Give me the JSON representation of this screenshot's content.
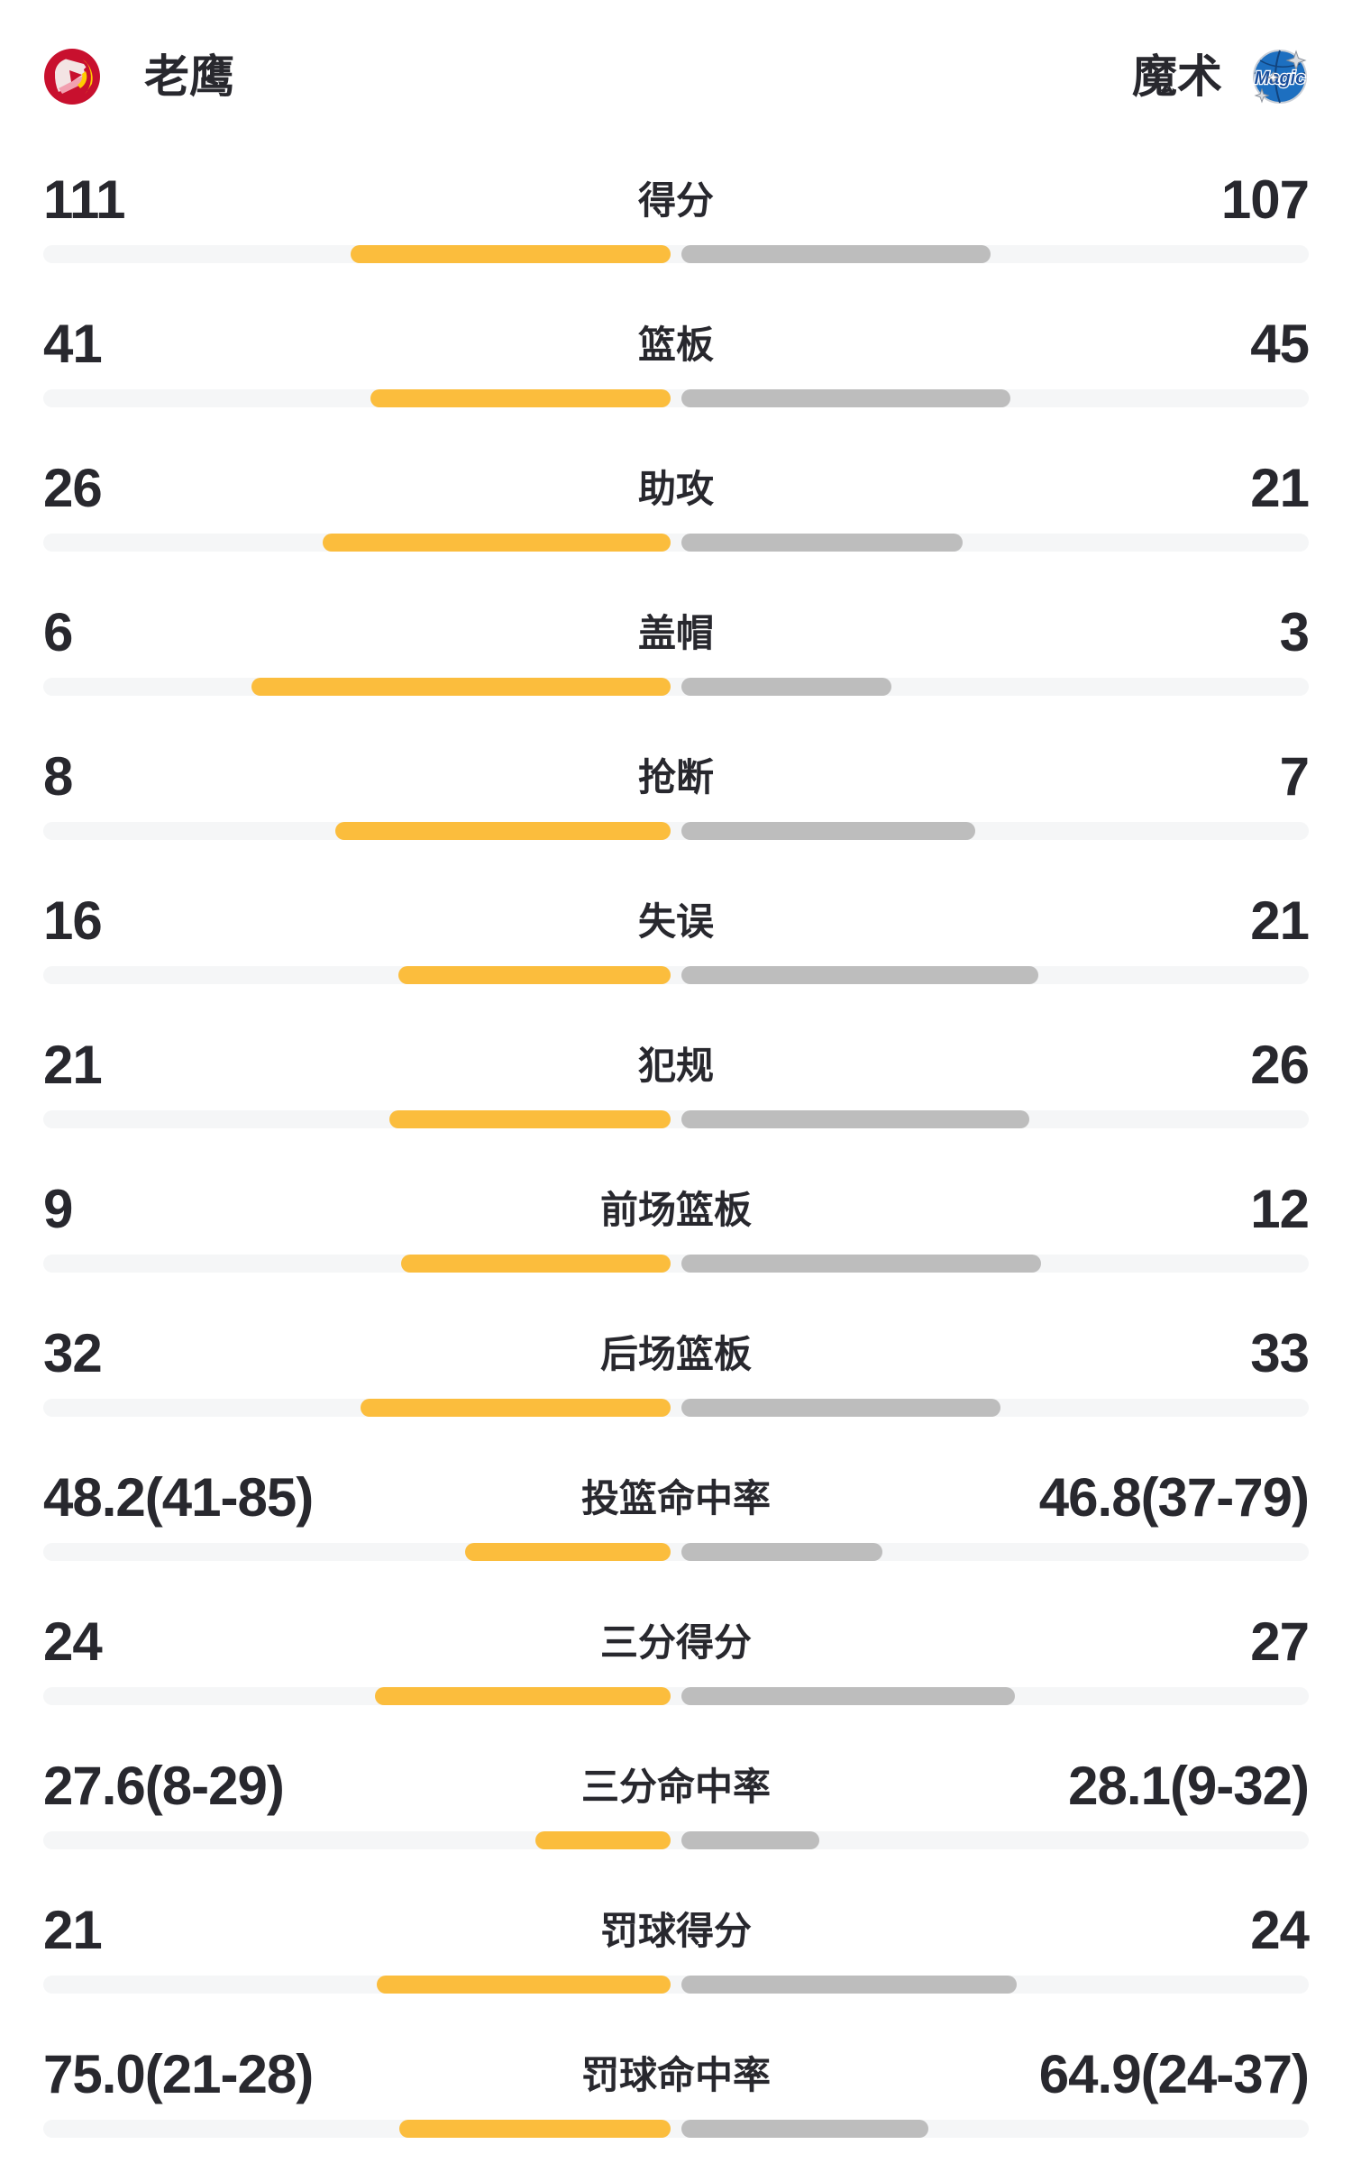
{
  "header": {
    "home_name": "老鹰",
    "away_name": "魔术",
    "home_logo": "hawks",
    "away_logo": "magic"
  },
  "colors": {
    "home_bar": "#FBBD3D",
    "away_bar": "#BDBDBD",
    "track": "#F5F6F7",
    "text": "#28282E",
    "hawks_red": "#C8102E",
    "hawks_yellow": "#FFCD00",
    "magic_blue": "#1D6FC0",
    "magic_silver": "#D9DCE1"
  },
  "rows": [
    {
      "label": "得分",
      "home": "111",
      "away": "107",
      "home_bar": 355,
      "away_bar": 343
    },
    {
      "label": "篮板",
      "home": "41",
      "away": "45",
      "home_bar": 333,
      "away_bar": 365
    },
    {
      "label": "助攻",
      "home": "26",
      "away": "21",
      "home_bar": 386,
      "away_bar": 312
    },
    {
      "label": "盖帽",
      "home": "6",
      "away": "3",
      "home_bar": 465,
      "away_bar": 233
    },
    {
      "label": "抢断",
      "home": "8",
      "away": "7",
      "home_bar": 372,
      "away_bar": 326
    },
    {
      "label": "失误",
      "home": "16",
      "away": "21",
      "home_bar": 302,
      "away_bar": 396
    },
    {
      "label": "犯规",
      "home": "21",
      "away": "26",
      "home_bar": 312,
      "away_bar": 386
    },
    {
      "label": "前场篮板",
      "home": "9",
      "away": "12",
      "home_bar": 299,
      "away_bar": 399
    },
    {
      "label": "后场篮板",
      "home": "32",
      "away": "33",
      "home_bar": 344,
      "away_bar": 354
    },
    {
      "label": "投篮命中率",
      "home": "48.2(41-85)",
      "away": "46.8(37-79)",
      "home_bar": 228,
      "away_bar": 223
    },
    {
      "label": "三分得分",
      "home": "24",
      "away": "27",
      "home_bar": 328,
      "away_bar": 370
    },
    {
      "label": "三分命中率",
      "home": "27.6(8-29)",
      "away": "28.1(9-32)",
      "home_bar": 150,
      "away_bar": 153
    },
    {
      "label": "罚球得分",
      "home": "21",
      "away": "24",
      "home_bar": 326,
      "away_bar": 372
    },
    {
      "label": "罚球命中率",
      "home": "75.0(21-28)",
      "away": "64.9(24-37)",
      "home_bar": 301,
      "away_bar": 274
    }
  ],
  "chart_data": {
    "type": "bar",
    "categories": [
      "得分",
      "篮板",
      "助攻",
      "盖帽",
      "抢断",
      "失误",
      "犯规",
      "前场篮板",
      "后场篮板",
      "投篮命中率",
      "三分得分",
      "三分命中率",
      "罚球得分",
      "罚球命中率"
    ],
    "series": [
      {
        "name": "老鹰",
        "values": [
          111,
          41,
          26,
          6,
          8,
          16,
          21,
          9,
          32,
          48.2,
          24,
          27.6,
          21,
          75.0
        ]
      },
      {
        "name": "魔术",
        "values": [
          107,
          45,
          21,
          3,
          7,
          21,
          26,
          12,
          33,
          46.8,
          27,
          28.1,
          24,
          64.9
        ]
      }
    ],
    "shooting_splits": {
      "field_goal": {
        "home": "41-85",
        "away": "37-79"
      },
      "three_point": {
        "home": "8-29",
        "away": "9-32"
      },
      "free_throw": {
        "home": "21-28",
        "away": "24-37"
      }
    },
    "legend_position": "top",
    "grid": false
  }
}
